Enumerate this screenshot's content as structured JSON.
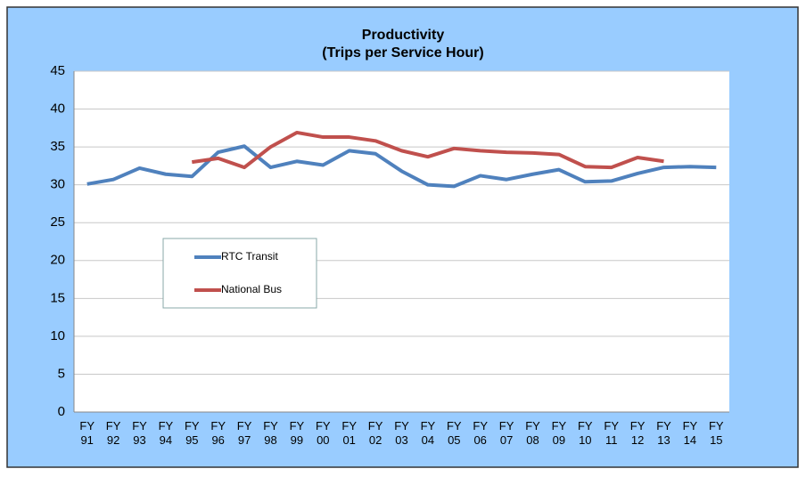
{
  "chart_data": {
    "type": "line",
    "title": "Productivity",
    "subtitle": "(Trips per Service Hour)",
    "categories": [
      "FY 91",
      "FY 92",
      "FY 93",
      "FY 94",
      "FY 95",
      "FY 96",
      "FY 97",
      "FY 98",
      "FY 99",
      "FY 00",
      "FY 01",
      "FY 02",
      "FY 03",
      "FY 04",
      "FY 05",
      "FY 06",
      "FY 07",
      "FY 08",
      "FY 09",
      "FY 10",
      "FY 11",
      "FY 12",
      "FY 13",
      "FY 14",
      "FY 15"
    ],
    "series": [
      {
        "name": "RTC Transit",
        "color": "#4f81bd",
        "values": [
          30.1,
          30.7,
          32.2,
          31.4,
          31.1,
          34.3,
          35.1,
          32.3,
          33.1,
          32.6,
          34.5,
          34.1,
          31.8,
          30.0,
          29.8,
          31.2,
          30.7,
          31.4,
          32.0,
          30.4,
          30.5,
          31.5,
          32.3,
          32.4,
          32.3
        ]
      },
      {
        "name": "National Bus",
        "color": "#c0504d",
        "values": [
          null,
          null,
          null,
          null,
          33.0,
          33.5,
          32.3,
          35.0,
          36.9,
          36.3,
          36.3,
          35.8,
          34.5,
          33.7,
          34.8,
          34.5,
          34.3,
          34.2,
          34.0,
          32.4,
          32.3,
          33.6,
          33.1,
          null,
          null
        ]
      }
    ],
    "ylim": [
      0,
      45
    ],
    "yticks": [
      0,
      5,
      10,
      15,
      20,
      25,
      30,
      35,
      40,
      45
    ],
    "grid": true
  }
}
